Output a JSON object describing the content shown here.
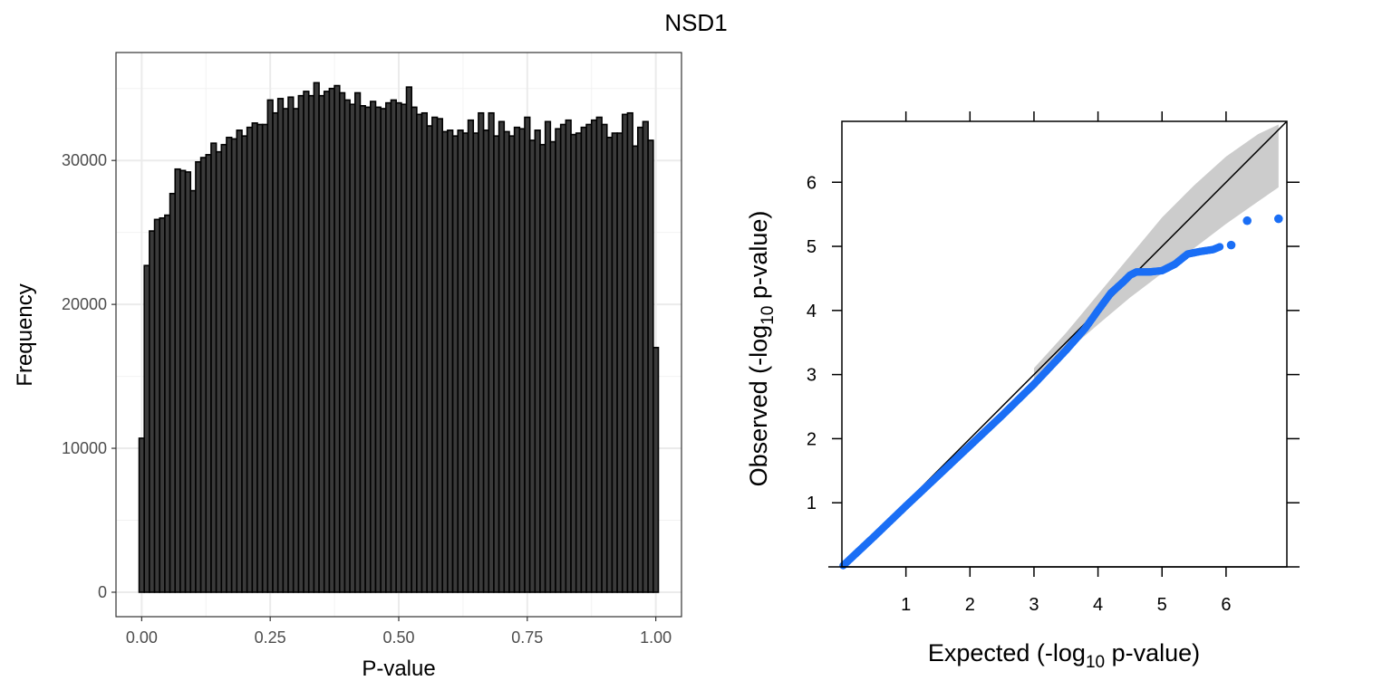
{
  "title": "NSD1",
  "chart_data": [
    {
      "type": "bar",
      "subtype": "histogram",
      "xlabel": "P-value",
      "ylabel": "Frequency",
      "xlim": [
        -0.05,
        1.05
      ],
      "ylim": [
        -1700,
        37500
      ],
      "x_ticks": [
        0.0,
        0.25,
        0.5,
        0.75,
        1.0
      ],
      "x_tick_labels": [
        "0.00",
        "0.25",
        "0.50",
        "0.75",
        "1.00"
      ],
      "y_ticks": [
        0,
        10000,
        20000,
        30000
      ],
      "y_tick_labels": [
        "0",
        "10000",
        "20000",
        "30000"
      ],
      "grid": true,
      "bin_width": 0.01,
      "bar_fill": "#3a3a3a",
      "bar_edge": "#000000",
      "values": [
        10700,
        22700,
        25100,
        25900,
        26000,
        26200,
        27700,
        29400,
        29300,
        29200,
        27900,
        29900,
        30200,
        30400,
        31200,
        30600,
        31100,
        31600,
        31500,
        32100,
        31700,
        32300,
        32600,
        32500,
        32500,
        34200,
        33300,
        34300,
        33600,
        34400,
        33600,
        34500,
        34800,
        34500,
        35400,
        34500,
        34800,
        35000,
        35200,
        34700,
        34200,
        33900,
        34700,
        33800,
        33700,
        34100,
        33700,
        33600,
        34000,
        34200,
        34000,
        33900,
        35100,
        33700,
        33200,
        33300,
        32400,
        33000,
        32900,
        32000,
        32100,
        31700,
        32100,
        31900,
        32800,
        31900,
        33300,
        32100,
        33300,
        31700,
        32700,
        32000,
        31700,
        32300,
        32200,
        33000,
        31400,
        32100,
        31100,
        32700,
        31300,
        32200,
        32500,
        32800,
        31800,
        31900,
        32300,
        32500,
        32800,
        33000,
        32500,
        31600,
        31900,
        31900,
        33200,
        33300,
        31000,
        32300,
        32700,
        31400,
        17000
      ]
    },
    {
      "type": "scatter",
      "subtype": "qq-plot",
      "xlabel_main": "Expected (-log",
      "xlabel_sub": "10",
      "xlabel_tail": " p-value)",
      "ylabel_main": "Observed (-log",
      "ylabel_sub": "10",
      "ylabel_tail": " p-value)",
      "xlim": [
        0,
        6.95
      ],
      "ylim": [
        0,
        6.95
      ],
      "x_ticks": [
        1,
        2,
        3,
        4,
        5,
        6
      ],
      "y_ticks": [
        1,
        2,
        3,
        4,
        5,
        6
      ],
      "point_color": "#1a6ef5",
      "band_color": "#cccccc",
      "line_color": "#000000",
      "points_main_curve": [
        [
          0.02,
          0.02
        ],
        [
          0.5,
          0.47
        ],
        [
          1.0,
          0.95
        ],
        [
          1.5,
          1.42
        ],
        [
          2.0,
          1.89
        ],
        [
          2.5,
          2.36
        ],
        [
          3.0,
          2.85
        ],
        [
          3.5,
          3.38
        ],
        [
          3.8,
          3.72
        ],
        [
          4.0,
          4.0
        ],
        [
          4.2,
          4.27
        ],
        [
          4.4,
          4.45
        ],
        [
          4.5,
          4.55
        ],
        [
          4.6,
          4.6
        ],
        [
          4.8,
          4.6
        ],
        [
          5.0,
          4.62
        ],
        [
          5.2,
          4.72
        ],
        [
          5.4,
          4.88
        ],
        [
          5.6,
          4.92
        ],
        [
          5.8,
          4.95
        ],
        [
          5.92,
          5.0
        ]
      ],
      "points_tail": [
        [
          6.08,
          5.02
        ],
        [
          6.33,
          5.4
        ],
        [
          6.82,
          5.43
        ]
      ],
      "band_upper": [
        [
          3.0,
          3.1
        ],
        [
          3.5,
          3.65
        ],
        [
          4.0,
          4.25
        ],
        [
          4.5,
          4.85
        ],
        [
          5.0,
          5.45
        ],
        [
          5.5,
          5.95
        ],
        [
          6.0,
          6.4
        ],
        [
          6.5,
          6.75
        ],
        [
          6.82,
          6.9
        ]
      ],
      "band_lower": [
        [
          3.0,
          2.9
        ],
        [
          3.5,
          3.35
        ],
        [
          4.0,
          3.78
        ],
        [
          4.5,
          4.2
        ],
        [
          5.0,
          4.58
        ],
        [
          5.5,
          4.97
        ],
        [
          6.0,
          5.35
        ],
        [
          6.5,
          5.7
        ],
        [
          6.82,
          5.92
        ]
      ]
    }
  ]
}
